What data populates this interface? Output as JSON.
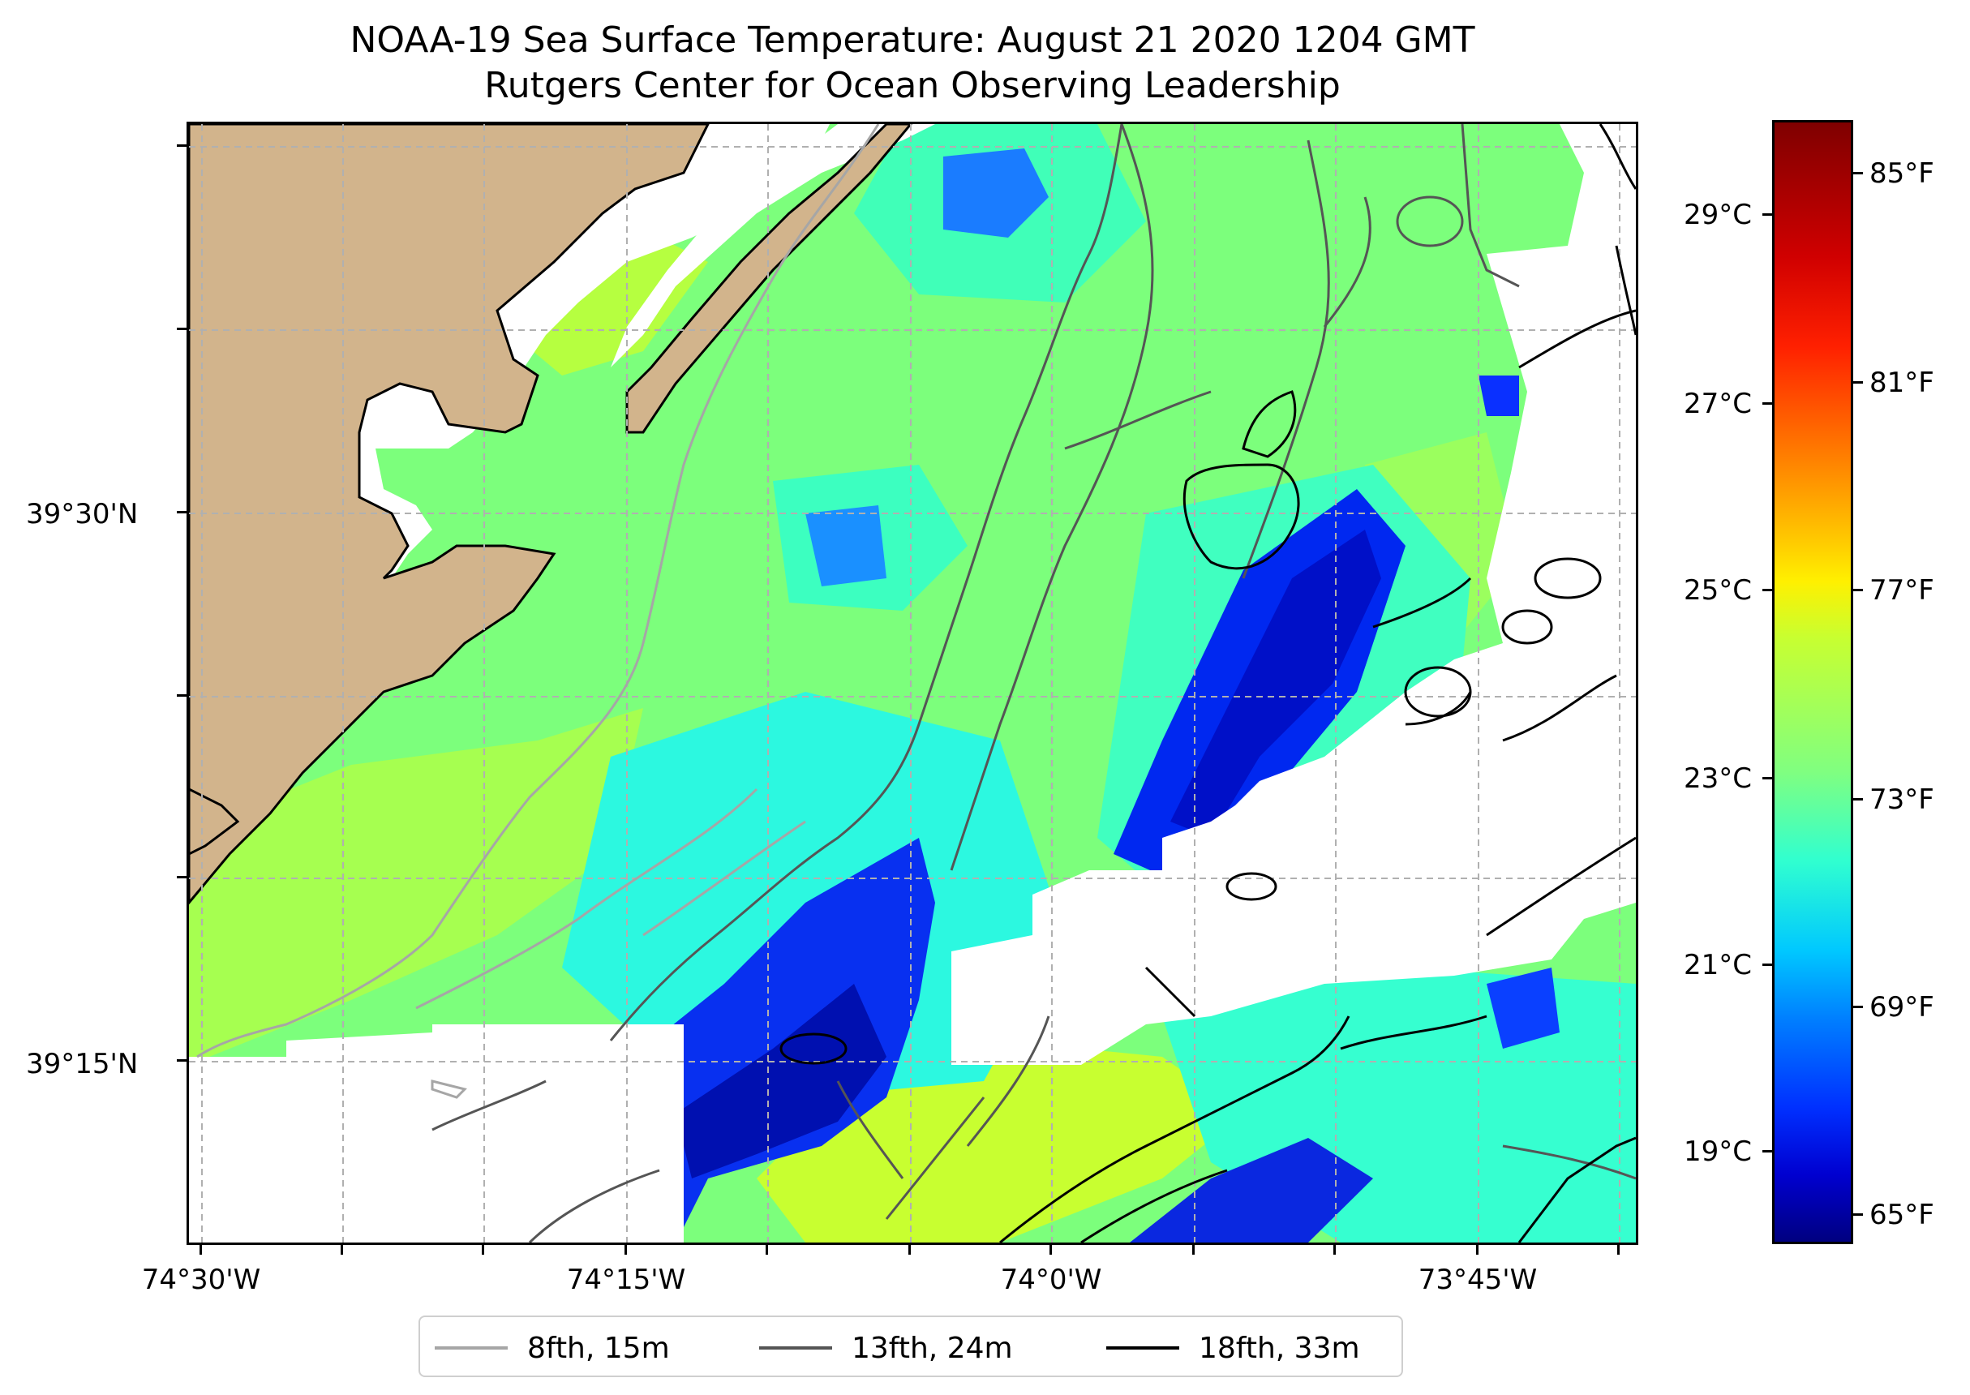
{
  "title": {
    "line1": "NOAA-19 Sea Surface Temperature: August 21 2020 1204 GMT",
    "line2": "Rutgers Center for Ocean Observing Leadership"
  },
  "axes": {
    "lat_labels": [
      "39°30'N",
      "39°15'N"
    ],
    "lon_labels": [
      "74°30'W",
      "74°15'W",
      "74°0'W",
      "73°45'W"
    ]
  },
  "colorbar": {
    "celsius": [
      "29°C",
      "27°C",
      "25°C",
      "23°C",
      "21°C",
      "19°C"
    ],
    "fahrenheit": [
      "85°F",
      "81°F",
      "77°F",
      "73°F",
      "69°F",
      "65°F"
    ]
  },
  "legend": [
    {
      "label": "8fth, 15m",
      "color": "#a6a6a6"
    },
    {
      "label": "13fth, 24m",
      "color": "#555555"
    },
    {
      "label": "18fth, 33m",
      "color": "#000000"
    }
  ],
  "colors": {
    "land": "#d2b48c",
    "grid": "#b0b0b0"
  }
}
